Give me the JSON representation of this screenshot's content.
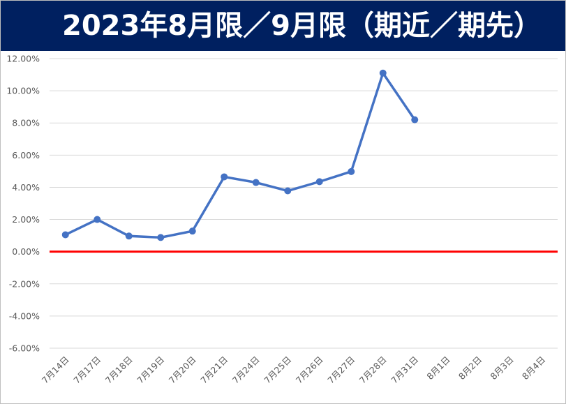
{
  "chart_data": {
    "type": "line",
    "title": "2023年8月限／9月限（期近／期先）",
    "xlabel": "",
    "ylabel": "",
    "categories": [
      "7月14日",
      "7月17日",
      "7月18日",
      "7月19日",
      "7月20日",
      "7月21日",
      "7月24日",
      "7月25日",
      "7月26日",
      "7月27日",
      "7月28日",
      "7月31日",
      "8月1日",
      "8月2日",
      "8月3日",
      "8月4日"
    ],
    "series": [
      {
        "values": [
          1.05,
          2.0,
          0.97,
          0.88,
          1.28,
          4.65,
          4.3,
          3.78,
          4.35,
          4.98,
          11.1,
          8.2,
          null,
          null,
          null,
          null
        ]
      }
    ],
    "ylim": [
      -6,
      12
    ],
    "yticks": [
      12,
      10,
      8,
      6,
      4,
      2,
      0,
      -2,
      -4,
      -6
    ],
    "ytick_labels": [
      "12.00%",
      "10.00%",
      "8.00%",
      "6.00%",
      "4.00%",
      "2.00%",
      "0.00%",
      "-2.00%",
      "-4.00%",
      "-6.00%"
    ],
    "grid": true,
    "legend": "none",
    "colors": {
      "line": "#4472C4",
      "zero_line": "#FF0000",
      "header_bg": "#002060",
      "header_text": "#FFFFFF"
    }
  }
}
